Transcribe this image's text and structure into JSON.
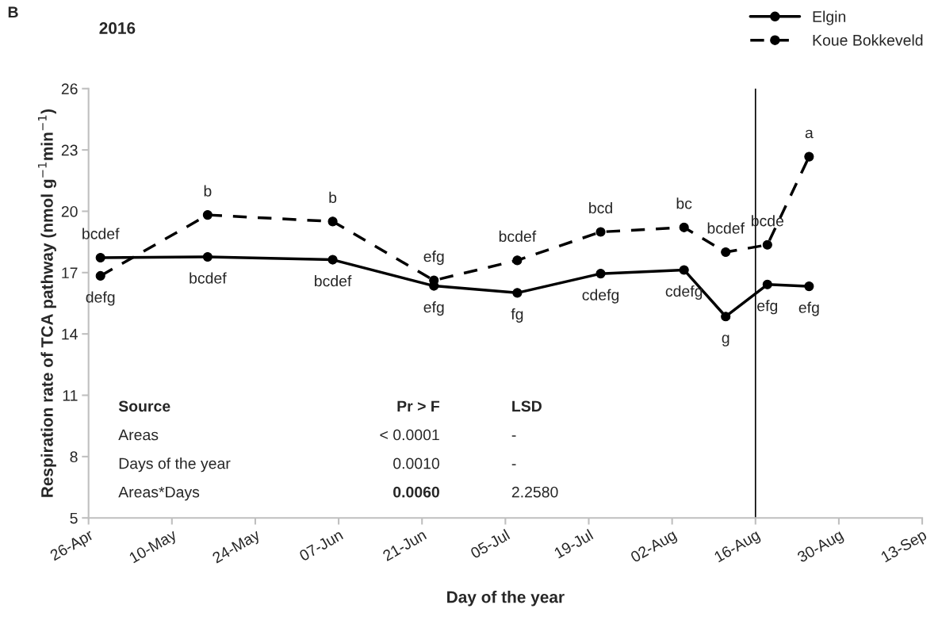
{
  "chart_data": {
    "type": "line",
    "title": "2016",
    "xlabel": "Day of the year",
    "ylabel": "Respiration rate of TCA pathway (nmol g$^{−1}$min$^{−1}$)",
    "x": [
      "2016-04-28",
      "2016-05-16",
      "2016-06-06",
      "2016-06-23",
      "2016-07-07",
      "2016-07-21",
      "2016-08-04",
      "2016-08-11",
      "2016-08-18",
      "2016-08-25"
    ],
    "series": [
      {
        "name": "Elgin",
        "color": "#000000",
        "line_style": "solid",
        "values": [
          17.73,
          17.77,
          17.63,
          16.35,
          16.01,
          16.95,
          17.13,
          14.85,
          16.42,
          16.33
        ]
      },
      {
        "name": "Koue Bokkeveld",
        "color": "#000000",
        "line_style": "dashed",
        "values": [
          16.84,
          19.82,
          19.5,
          16.62,
          17.6,
          18.99,
          19.21,
          18.0,
          18.36,
          22.67
        ]
      }
    ],
    "marker": "circle",
    "grid": false,
    "legend": "top right",
    "xlim": [
      "2016-04-26",
      "2016-09-13"
    ],
    "xticks": [
      {
        "value": "2016-04-26",
        "label": "26-Apr"
      },
      {
        "value": "2016-05-10",
        "label": "10-May"
      },
      {
        "value": "2016-05-24",
        "label": "24-May"
      },
      {
        "value": "2016-06-07",
        "label": "07-Jun"
      },
      {
        "value": "2016-06-21",
        "label": "21-Jun"
      },
      {
        "value": "2016-07-05",
        "label": "05-Jul"
      },
      {
        "value": "2016-07-19",
        "label": "19-Jul"
      },
      {
        "value": "2016-08-02",
        "label": "02-Aug"
      },
      {
        "value": "2016-08-16",
        "label": "16-Aug"
      },
      {
        "value": "2016-08-30",
        "label": "30-Aug"
      },
      {
        "value": "2016-09-13",
        "label": "13-Sep"
      }
    ],
    "ylim": [
      5,
      26
    ],
    "yticks": [
      5,
      8,
      11,
      14,
      17,
      20,
      23,
      26
    ],
    "ref_lines": [
      {
        "axis": "x",
        "value": "2016-08-16",
        "color": "#000000"
      }
    ],
    "annotations": [
      "B",
      "Source",
      "Pr > F",
      "LSD",
      "Areas",
      "< 0.0001",
      "-",
      "Days of the year",
      "0.0010",
      "-",
      "Areas*Days",
      "0.0060",
      "2.2580",
      {
        "text": "bcdef",
        "x": "2016-04-28",
        "y": 17.73
      },
      {
        "text": "defg",
        "x": "2016-04-28",
        "y": 16.84
      },
      {
        "text": "bcdef",
        "x": "2016-05-16",
        "y": 17.77
      },
      {
        "text": "b",
        "x": "2016-05-16",
        "y": 19.82
      },
      {
        "text": "bcdef",
        "x": "2016-06-06",
        "y": 17.63
      },
      {
        "text": "b",
        "x": "2016-06-06",
        "y": 19.5
      },
      {
        "text": "efg",
        "x": "2016-06-23",
        "y": 16.35
      },
      {
        "text": "efg",
        "x": "2016-06-23",
        "y": 16.62
      },
      {
        "text": "fg",
        "x": "2016-07-07",
        "y": 16.01
      },
      {
        "text": "bcdef",
        "x": "2016-07-07",
        "y": 17.6
      },
      {
        "text": "cdefg",
        "x": "2016-07-21",
        "y": 16.95
      },
      {
        "text": "bcd",
        "x": "2016-07-21",
        "y": 18.99
      },
      {
        "text": "cdefg",
        "x": "2016-08-04",
        "y": 17.13
      },
      {
        "text": "bc",
        "x": "2016-08-04",
        "y": 19.21
      },
      {
        "text": "g",
        "x": "2016-08-11",
        "y": 14.85
      },
      {
        "text": "bcdef",
        "x": "2016-08-11",
        "y": 18.0
      },
      {
        "text": "efg",
        "x": "2016-08-18",
        "y": 16.42
      },
      {
        "text": "bcde",
        "x": "2016-08-18",
        "y": 18.36
      },
      {
        "text": "efg",
        "x": "2016-08-25",
        "y": 16.33
      },
      {
        "text": "a",
        "x": "2016-08-25",
        "y": 22.67
      }
    ]
  }
}
